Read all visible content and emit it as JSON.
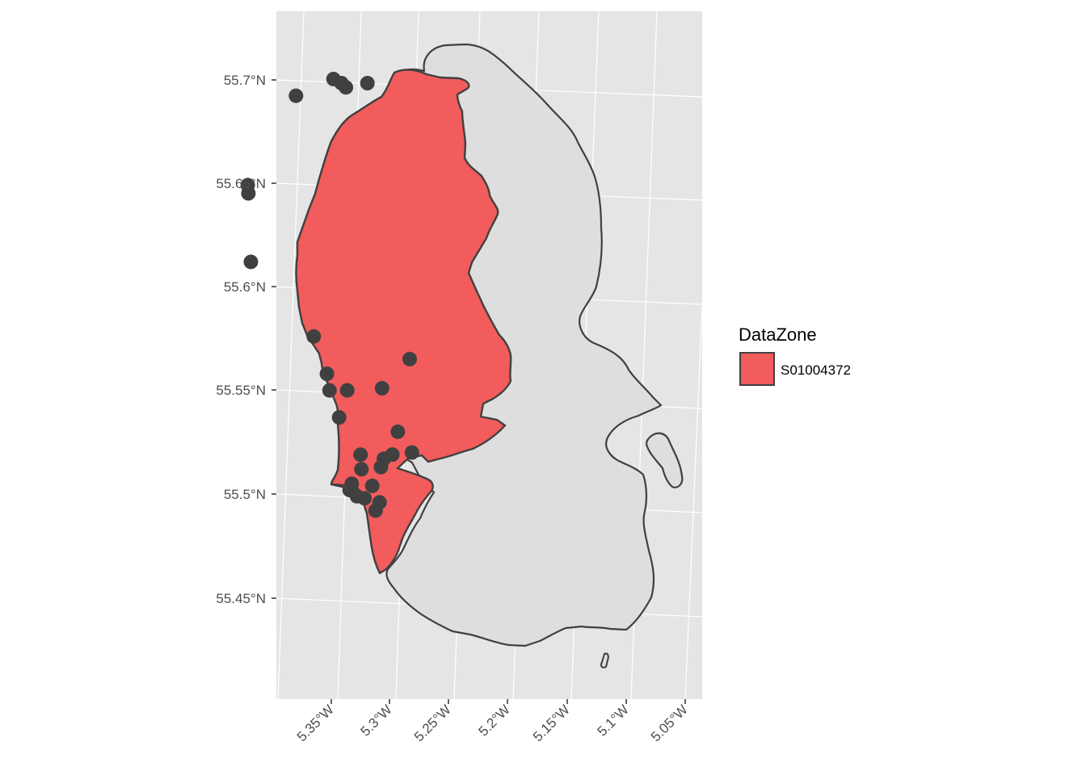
{
  "chart_data": {
    "type": "map",
    "title": "",
    "xlabel": "",
    "ylabel": "",
    "grid": true,
    "legend_position": "right",
    "x_ticks": [
      "5.35°W",
      "5.3°W",
      "5.25°W",
      "5.2°W",
      "5.15°W",
      "5.1°W",
      "5.05°W"
    ],
    "y_ticks": [
      "55.45°N",
      "55.5°N",
      "55.55°N",
      "55.6°N",
      "55.65°N",
      "55.7°N"
    ],
    "legend": {
      "title": "DataZone",
      "entries": [
        {
          "label": "S01004372",
          "fill": "#f25c5c"
        }
      ]
    },
    "colors": {
      "panel": "#e5e5e5",
      "grid": "#ffffff",
      "island_fill": "#dedede",
      "zone_fill": "#f25c5c",
      "outline": "#404040",
      "points": "#404040"
    },
    "points": [
      {
        "lon": -5.303,
        "lat": 55.692
      },
      {
        "lon": -5.268,
        "lat": 55.7
      },
      {
        "lon": -5.262,
        "lat": 55.698
      },
      {
        "lon": -5.259,
        "lat": 55.696
      },
      {
        "lon": -5.24,
        "lat": 55.698
      },
      {
        "lon": -5.361,
        "lat": 55.649
      },
      {
        "lon": -5.362,
        "lat": 55.645
      },
      {
        "lon": -5.373,
        "lat": 55.612
      },
      {
        "lon": -5.334,
        "lat": 55.576
      },
      {
        "lon": -5.33,
        "lat": 55.558
      },
      {
        "lon": -5.331,
        "lat": 55.55
      },
      {
        "lon": -5.316,
        "lat": 55.55
      },
      {
        "lon": -5.286,
        "lat": 55.551
      },
      {
        "lon": -5.257,
        "lat": 55.565
      },
      {
        "lon": -5.328,
        "lat": 55.537
      },
      {
        "lon": -5.281,
        "lat": 55.53
      },
      {
        "lon": -5.317,
        "lat": 55.519
      },
      {
        "lon": -5.298,
        "lat": 55.517
      },
      {
        "lon": -5.29,
        "lat": 55.519
      },
      {
        "lon": -5.273,
        "lat": 55.52
      },
      {
        "lon": -5.302,
        "lat": 55.513
      },
      {
        "lon": -5.319,
        "lat": 55.512
      },
      {
        "lon": -5.33,
        "lat": 55.505
      },
      {
        "lon": -5.333,
        "lat": 55.502
      },
      {
        "lon": -5.328,
        "lat": 55.499
      },
      {
        "lon": -5.322,
        "lat": 55.498
      },
      {
        "lon": -5.313,
        "lat": 55.504
      },
      {
        "lon": -5.31,
        "lat": 55.496
      },
      {
        "lon": -5.315,
        "lat": 55.492
      }
    ]
  }
}
